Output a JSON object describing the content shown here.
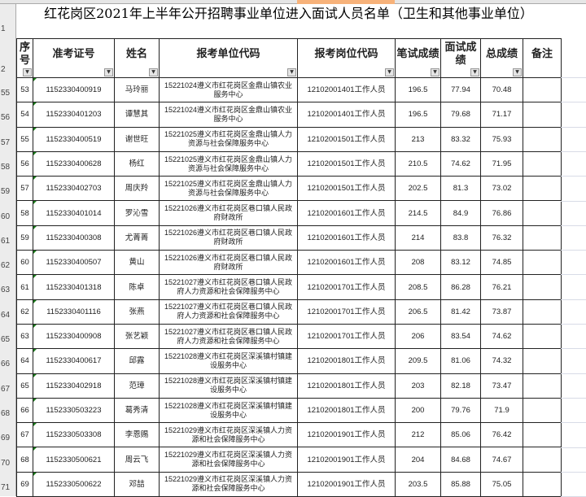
{
  "title": "红花岗区2021年上半年公开招聘事业单位进入面试人员名单（卫生和其他事业单位）",
  "headers": [
    "序号",
    "准考证号",
    "姓名",
    "报考单位代码",
    "报考岗位代码",
    "笔试成绩",
    "面试成绩",
    "总成绩",
    "备注"
  ],
  "row_numbers": [
    "1",
    "2",
    "55",
    "56",
    "57",
    "58",
    "59",
    "60",
    "61",
    "62",
    "63",
    "64",
    "65",
    "66",
    "67",
    "68",
    "69",
    "70",
    "71"
  ],
  "rows": [
    [
      "53",
      "1152330400919",
      "马玲丽",
      "15221024遵义市红花岗区金鼎山镇农业服务中心",
      "12102001401工作人员",
      "196.5",
      "77.94",
      "70.48",
      ""
    ],
    [
      "54",
      "1152330401203",
      "谭慧其",
      "15221024遵义市红花岗区金鼎山镇农业服务中心",
      "12102001401工作人员",
      "196.5",
      "79.68",
      "71.17",
      ""
    ],
    [
      "55",
      "1152330400519",
      "谢世旺",
      "15221025遵义市红花岗区金鼎山镇人力资源与社会保障服务中心",
      "12102001501工作人员",
      "213",
      "83.32",
      "75.93",
      ""
    ],
    [
      "56",
      "1152330400628",
      "杨红",
      "15221025遵义市红花岗区金鼎山镇人力资源与社会保障服务中心",
      "12102001501工作人员",
      "210.5",
      "74.62",
      "71.95",
      ""
    ],
    [
      "57",
      "1152330402703",
      "周庆羚",
      "15221025遵义市红花岗区金鼎山镇人力资源与社会保障服务中心",
      "12102001501工作人员",
      "202.5",
      "81.3",
      "73.02",
      ""
    ],
    [
      "58",
      "1152330401014",
      "罗沁雪",
      "15221026遵义市红花岗区巷口镇人民政府财政所",
      "12102001601工作人员",
      "214.5",
      "84.9",
      "76.86",
      ""
    ],
    [
      "59",
      "1152330400308",
      "尤菁菁",
      "15221026遵义市红花岗区巷口镇人民政府财政所",
      "12102001601工作人员",
      "214",
      "83.8",
      "76.32",
      ""
    ],
    [
      "60",
      "1152330400507",
      "黄山",
      "15221026遵义市红花岗区巷口镇人民政府财政所",
      "12102001601工作人员",
      "208",
      "83.12",
      "74.85",
      ""
    ],
    [
      "61",
      "1152330401318",
      "陈卓",
      "15221027遵义市红花岗区巷口镇人民政府人力资源和社会保障服务中心",
      "12102001701工作人员",
      "208.5",
      "86.28",
      "76.21",
      ""
    ],
    [
      "62",
      "1152330401116",
      "张燕",
      "15221027遵义市红花岗区巷口镇人民政府人力资源和社会保障服务中心",
      "12102001701工作人员",
      "206.5",
      "81.42",
      "73.87",
      ""
    ],
    [
      "63",
      "1152330400908",
      "张艺颖",
      "15221027遵义市红花岗区巷口镇人民政府人力资源和社会保障服务中心",
      "12102001701工作人员",
      "206",
      "83.54",
      "74.62",
      ""
    ],
    [
      "64",
      "1152330400617",
      "邱露",
      "15221028遵义市红花岗区深溪镇村镇建设服务中心",
      "12102001801工作人员",
      "209.5",
      "81.06",
      "74.32",
      ""
    ],
    [
      "65",
      "1152330402918",
      "范璋",
      "15221028遵义市红花岗区深溪镇村镇建设服务中心",
      "12102001801工作人员",
      "203",
      "82.18",
      "73.47",
      ""
    ],
    [
      "66",
      "1152330503223",
      "葛秀清",
      "15221028遵义市红花岗区深溪镇村镇建设服务中心",
      "12102001801工作人员",
      "200",
      "79.76",
      "71.9",
      ""
    ],
    [
      "67",
      "1152330503308",
      "李恩赐",
      "15221029遵义市红花岗区深溪镇人力资源和社会保障服务中心",
      "12102001901工作人员",
      "212",
      "85.06",
      "76.42",
      ""
    ],
    [
      "68",
      "1152330500621",
      "周云飞",
      "15221029遵义市红花岗区深溪镇人力资源和社会保障服务中心",
      "12102001901工作人员",
      "204",
      "84.68",
      "74.67",
      ""
    ],
    [
      "69",
      "1152330500622",
      "邓喆",
      "15221029遵义市红花岗区深溪镇人力资源和社会保障服务中心",
      "12102001901工作人员",
      "203.5",
      "85.88",
      "75.05",
      ""
    ]
  ]
}
